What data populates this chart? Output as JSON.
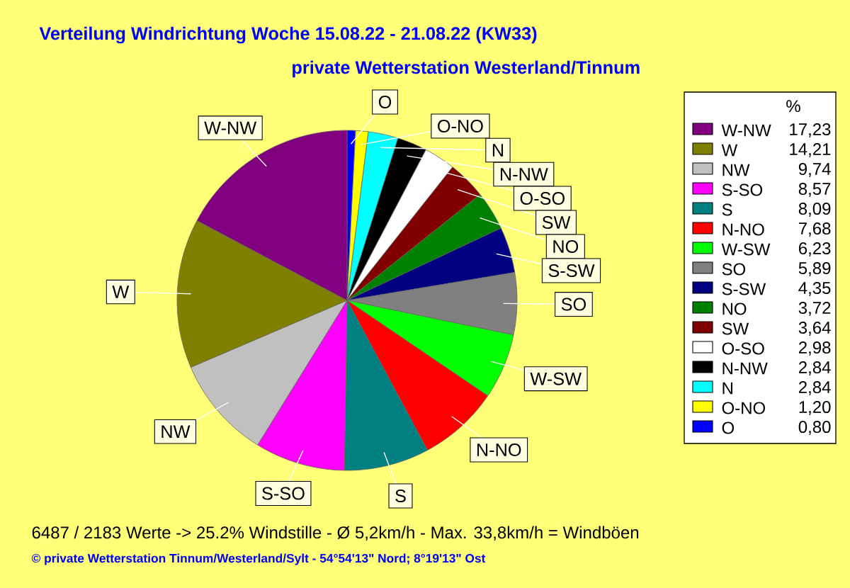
{
  "chart_data": {
    "type": "pie",
    "title": "Verteilung Windrichtung   Woche 15.08.22 - 21.08.22 (KW33)",
    "subtitle": "private Wetterstation Westerland/Tinnum",
    "categories": [
      "W-NW",
      "W",
      "NW",
      "S-SO",
      "S",
      "N-NO",
      "W-SW",
      "SO",
      "S-SW",
      "NO",
      "SW",
      "O-SO",
      "N-NW",
      "N",
      "O-NO",
      "O"
    ],
    "values": [
      17.23,
      14.21,
      9.74,
      8.57,
      8.09,
      7.68,
      6.23,
      5.89,
      4.35,
      3.72,
      3.64,
      2.98,
      2.84,
      2.84,
      1.2,
      0.8
    ],
    "value_labels": [
      "17,23",
      "14,21",
      "9,74",
      "8,57",
      "8,09",
      "7,68",
      "6,23",
      "5,89",
      "4,35",
      "3,72",
      "3,64",
      "2,98",
      "2,84",
      "2,84",
      "1,20",
      "0,80"
    ],
    "colors": [
      "#800080",
      "#808000",
      "#c0c0c0",
      "#ff00ff",
      "#008080",
      "#ff0000",
      "#00ff00",
      "#808080",
      "#000080",
      "#008000",
      "#800000",
      "#ffffff",
      "#000000",
      "#00ffff",
      "#ffff00",
      "#0000ff"
    ],
    "legend": "right",
    "legend_title": "%",
    "annotations": [
      "6487 / 2183 Werte  -> 25.2% Windstille   -   Ø 5,2km/h  -  Max. 33,8km/h = Windböen",
      "© private Wetterstation Tinnum/Westerland/Sylt   -   54°54'13\" Nord; 8°19'13\" Ost"
    ]
  }
}
